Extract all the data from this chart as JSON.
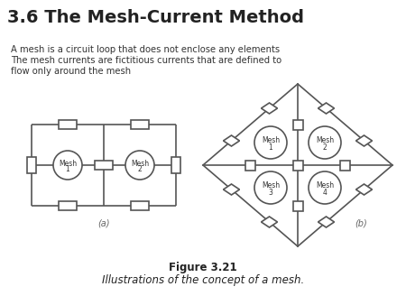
{
  "title": "3.6 The Mesh-Current Method",
  "description_lines": [
    "A mesh is a circuit loop that does not enclose any elements",
    "The mesh currents are fictitious currents that are defined to",
    "flow only around the mesh"
  ],
  "figure_label": "Figure 3.21",
  "figure_caption": "Illustrations of the concept of a mesh.",
  "label_a": "(a)",
  "label_b": "(b)",
  "bg_color": "#ffffff",
  "line_color": "#555555",
  "title_fontsize": 14,
  "body_fontsize": 7.2,
  "caption_fontsize": 8.5
}
